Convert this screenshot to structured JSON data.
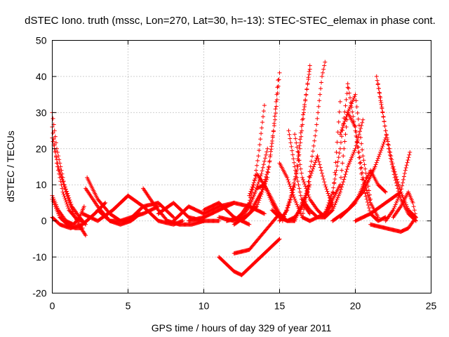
{
  "chart_data": {
    "type": "scatter",
    "title": "dSTEC Iono. truth (mssc, Lon=270, Lat=30, h=-13): STEC-STEC_elemax in phase cont.",
    "xlabel": "GPS time / hours of day 329 of year 2011",
    "ylabel": "dSTEC  / TECUs",
    "xlim": [
      0,
      25
    ],
    "ylim": [
      -20,
      50
    ],
    "xticks": [
      0,
      5,
      10,
      15,
      20,
      25
    ],
    "yticks": [
      -20,
      -10,
      0,
      10,
      20,
      30,
      40,
      50
    ],
    "grid": true,
    "marker": "plus",
    "color": "#ff0000",
    "series": [
      {
        "x": [
          0.0,
          0.3,
          0.8,
          1.3,
          1.8,
          2.2
        ],
        "y": [
          30,
          20,
          10,
          4,
          1,
          -1
        ]
      },
      {
        "x": [
          0.0,
          0.3,
          0.7,
          1.1,
          1.6,
          2.0
        ],
        "y": [
          26,
          16,
          8,
          3,
          0.5,
          0
        ]
      },
      {
        "x": [
          0.0,
          0.4,
          0.9,
          1.4,
          1.9,
          2.2
        ],
        "y": [
          23,
          15,
          8,
          2,
          -2,
          -4
        ]
      },
      {
        "x": [
          0.0,
          0.4,
          0.9,
          1.4,
          1.8,
          2.1
        ],
        "y": [
          7,
          3,
          0,
          -1,
          1,
          4
        ]
      },
      {
        "x": [
          0.0,
          0.5,
          1.0,
          1.5,
          2.0
        ],
        "y": [
          6,
          1,
          -1,
          -2,
          -2
        ]
      },
      {
        "x": [
          0.0,
          0.5,
          1.2,
          2.0,
          2.8,
          3.5
        ],
        "y": [
          1,
          -1,
          -2,
          -1,
          2,
          5
        ]
      },
      {
        "x": [
          2.3,
          3.0,
          3.8,
          4.5,
          5.0,
          5.5
        ],
        "y": [
          12,
          6,
          2,
          0,
          0,
          1
        ]
      },
      {
        "x": [
          2.2,
          3.0,
          3.8,
          4.5,
          5.2,
          5.8
        ],
        "y": [
          9,
          4,
          0,
          -1,
          0,
          2
        ]
      },
      {
        "x": [
          3.0,
          3.8,
          4.5,
          5.2,
          6.0,
          7.0
        ],
        "y": [
          3,
          0,
          0,
          1,
          2,
          4
        ]
      },
      {
        "x": [
          2.0,
          3.0,
          4.0,
          5.0
        ],
        "y": [
          2,
          0,
          3,
          7
        ]
      },
      {
        "x": [
          4.0,
          5.0,
          6.0,
          7.0,
          8.0,
          8.6
        ],
        "y": [
          3,
          7,
          4,
          0,
          -1,
          0
        ]
      },
      {
        "x": [
          5.0,
          6.0,
          7.0,
          8.0
        ],
        "y": [
          0,
          4,
          5,
          1
        ]
      },
      {
        "x": [
          6.0,
          6.8,
          7.6,
          8.4,
          9.2,
          10.0
        ],
        "y": [
          9,
          4,
          0,
          -1,
          -1,
          0
        ]
      },
      {
        "x": [
          7.0,
          8.0,
          9.0,
          10.0,
          11.0
        ],
        "y": [
          2,
          5,
          1,
          0,
          0
        ]
      },
      {
        "x": [
          8.0,
          9.0,
          10.0,
          11.0,
          12.0
        ],
        "y": [
          0,
          4,
          2,
          4,
          5
        ]
      },
      {
        "x": [
          9.0,
          10.0,
          11.0,
          12.0,
          13.0,
          14.0
        ],
        "y": [
          0,
          1,
          3,
          5,
          4,
          2
        ]
      },
      {
        "x": [
          10.0,
          10.5,
          11.0,
          11.5,
          12.0,
          12.5,
          13.0
        ],
        "y": [
          3,
          4,
          5,
          3,
          1,
          0,
          -1
        ]
      },
      {
        "x": [
          11.0,
          12.0,
          12.5,
          13.0,
          13.3,
          13.6,
          14.0
        ],
        "y": [
          1,
          0,
          2,
          5,
          10,
          18,
          32
        ]
      },
      {
        "x": [
          11.5,
          12.5,
          13.0,
          13.4,
          13.8,
          14.2
        ],
        "y": [
          0,
          1,
          4,
          8,
          13,
          20
        ]
      },
      {
        "x": [
          12.0,
          13.0,
          13.8,
          14.3,
          14.7,
          15.0
        ],
        "y": [
          -1,
          2,
          8,
          15,
          28,
          41
        ]
      },
      {
        "x": [
          12.5,
          13.5,
          14.2,
          14.6,
          14.9
        ],
        "y": [
          0,
          4,
          12,
          25,
          39
        ]
      },
      {
        "x": [
          11.0,
          11.5,
          12.0,
          12.5,
          13.0,
          14.0,
          15.0
        ],
        "y": [
          -10,
          -12,
          -14,
          -15,
          -13,
          -9,
          -5
        ]
      },
      {
        "x": [
          12.0,
          13.0,
          14.0,
          15.0
        ],
        "y": [
          -9,
          -8,
          -3,
          2
        ]
      },
      {
        "x": [
          13.0,
          13.5,
          14.0,
          14.5,
          15.0
        ],
        "y": [
          7,
          13,
          10,
          5,
          1
        ]
      },
      {
        "x": [
          13.5,
          14.0,
          14.5,
          15.0,
          15.5,
          16.0
        ],
        "y": [
          9,
          10,
          6,
          2,
          0,
          0
        ]
      },
      {
        "x": [
          14.5,
          15.0,
          15.5,
          16.0,
          16.5,
          17.0
        ],
        "y": [
          3,
          1,
          0,
          1,
          4,
          10
        ]
      },
      {
        "x": [
          15.0,
          15.5,
          16.0,
          16.5,
          17.0
        ],
        "y": [
          0,
          3,
          10,
          28,
          42
        ]
      },
      {
        "x": [
          15.2,
          15.7,
          16.2,
          16.6,
          17.0
        ],
        "y": [
          0,
          6,
          15,
          30,
          43
        ]
      },
      {
        "x": [
          15.0,
          15.5,
          16.0,
          16.5,
          17.0
        ],
        "y": [
          16,
          12,
          6,
          1,
          0
        ]
      },
      {
        "x": [
          15.6,
          16.0,
          16.5,
          17.0
        ],
        "y": [
          25,
          15,
          5,
          2
        ]
      },
      {
        "x": [
          16.0,
          16.5,
          17.0,
          17.5,
          18.0
        ],
        "y": [
          24,
          12,
          6,
          3,
          1
        ]
      },
      {
        "x": [
          16.5,
          17.0,
          17.5,
          18.0,
          18.5
        ],
        "y": [
          1,
          12,
          18,
          10,
          4
        ]
      },
      {
        "x": [
          16.0,
          16.8,
          17.4,
          17.8,
          18.0
        ],
        "y": [
          0,
          8,
          25,
          40,
          44
        ]
      },
      {
        "x": [
          16.5,
          17.0,
          17.5,
          18.0,
          18.5,
          19.0
        ],
        "y": [
          6,
          3,
          1,
          1,
          5,
          33
        ]
      },
      {
        "x": [
          17.0,
          18.0,
          18.5,
          19.0,
          19.5
        ],
        "y": [
          0,
          2,
          8,
          20,
          37
        ]
      },
      {
        "x": [
          18.0,
          18.5,
          19.0,
          19.5,
          20.0,
          20.5
        ],
        "y": [
          1,
          3,
          8,
          15,
          20,
          28
        ]
      },
      {
        "x": [
          18.0,
          19.0,
          19.5,
          20.0,
          20.5,
          21.0
        ],
        "y": [
          2,
          10,
          30,
          35,
          18,
          6
        ]
      },
      {
        "x": [
          19.0,
          19.5,
          20.0,
          20.5,
          21.0,
          21.5
        ],
        "y": [
          24,
          30,
          26,
          12,
          5,
          1
        ]
      },
      {
        "x": [
          19.5,
          20.0,
          20.5,
          21.0,
          21.5,
          22.0
        ],
        "y": [
          38,
          25,
          10,
          2,
          0,
          1
        ]
      },
      {
        "x": [
          18.5,
          19.5,
          20.5,
          21.3,
          22.0
        ],
        "y": [
          0,
          3,
          8,
          15,
          23
        ]
      },
      {
        "x": [
          19.0,
          20.0,
          21.0,
          21.5,
          22.0
        ],
        "y": [
          1,
          5,
          14,
          10,
          8
        ]
      },
      {
        "x": [
          20.0,
          21.0,
          22.0,
          23.0
        ],
        "y": [
          0,
          2,
          5,
          8
        ]
      },
      {
        "x": [
          21.4,
          21.8,
          22.2,
          22.6,
          23.0,
          23.5,
          24.0
        ],
        "y": [
          40,
          30,
          20,
          12,
          6,
          2,
          0
        ]
      },
      {
        "x": [
          21.5,
          22.0,
          22.5,
          23.0,
          23.5,
          24.0
        ],
        "y": [
          38,
          25,
          15,
          8,
          3,
          1
        ]
      },
      {
        "x": [
          21.0,
          22.0,
          23.0,
          23.5,
          24.0
        ],
        "y": [
          -1,
          -2,
          -3,
          -2,
          1
        ]
      },
      {
        "x": [
          22.0,
          22.5,
          23.0,
          23.3,
          23.6
        ],
        "y": [
          0,
          3,
          8,
          14,
          19
        ]
      },
      {
        "x": [
          22.5,
          23.0,
          23.5,
          23.8,
          24.0
        ],
        "y": [
          1,
          4,
          8,
          5,
          1
        ]
      }
    ]
  }
}
